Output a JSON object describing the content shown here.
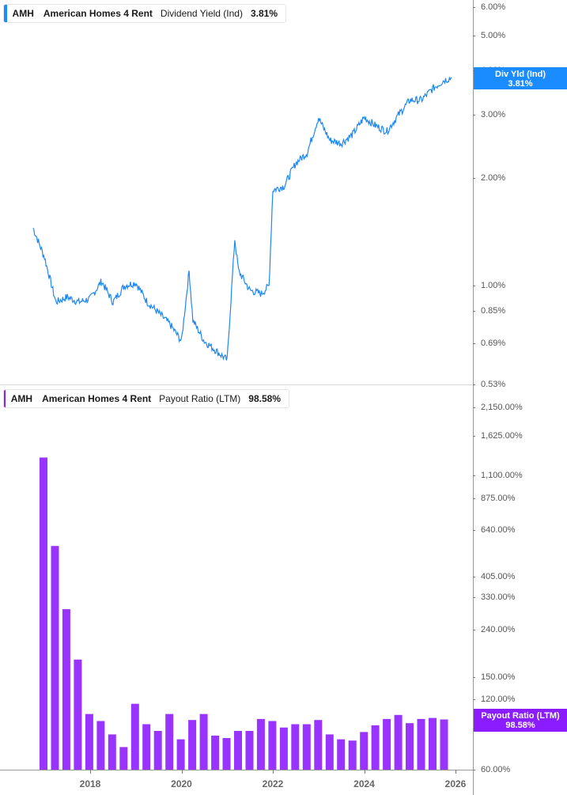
{
  "top_panel": {
    "legend": {
      "ticker": "AMH",
      "company": "American Homes 4 Rent",
      "metric": "Dividend Yield (Ind)",
      "value": "3.81%"
    },
    "flag": {
      "line1": "Div Yld (Ind)",
      "line2": "3.81%",
      "color": "#1a8cff"
    },
    "line_color": "#1e88f0",
    "y_ticks": [
      "6.00%",
      "5.00%",
      "4.00%",
      "3.00%",
      "2.00%",
      "1.00%",
      "0.85%",
      "0.69%",
      "0.53%"
    ]
  },
  "bottom_panel": {
    "legend": {
      "ticker": "AMH",
      "company": "American Homes 4 Rent",
      "metric": "Payout Ratio (LTM)",
      "value": "98.58%"
    },
    "flag": {
      "line1": "Payout Ratio (LTM)",
      "line2": "98.58%",
      "color": "#8a1cff"
    },
    "bar_color": "#9933ff",
    "y_ticks": [
      "2,150.00%",
      "1,625.00%",
      "1,100.00%",
      "875.00%",
      "640.00%",
      "405.00%",
      "330.00%",
      "240.00%",
      "150.00%",
      "120.00%",
      "90.00%",
      "60.00%"
    ]
  },
  "x_axis": {
    "ticks": [
      "2018",
      "2020",
      "2022",
      "2024",
      "2026"
    ]
  },
  "chart_data": [
    {
      "type": "line",
      "title": "AMH American Homes 4 Rent Dividend Yield (Ind)",
      "current_value": "3.81%",
      "yscale": "log",
      "ylim": [
        0.53,
        6.0
      ],
      "y_ticks": [
        6.0,
        5.0,
        4.0,
        3.0,
        2.0,
        1.0,
        0.85,
        0.69,
        0.53
      ],
      "x_ticks": [
        "2018",
        "2020",
        "2022",
        "2024",
        "2026"
      ],
      "x": [
        "2016-10",
        "2017-01",
        "2017-04",
        "2017-07",
        "2017-10",
        "2018-01",
        "2018-04",
        "2018-07",
        "2018-10",
        "2019-01",
        "2019-04",
        "2019-07",
        "2019-10",
        "2020-01",
        "2020-03",
        "2020-04",
        "2020-07",
        "2020-10",
        "2021-01",
        "2021-03",
        "2021-04",
        "2021-07",
        "2021-10",
        "2021-12",
        "2022-01",
        "2022-04",
        "2022-07",
        "2022-10",
        "2023-01",
        "2023-02",
        "2023-04",
        "2023-07",
        "2023-10",
        "2024-01",
        "2024-04",
        "2024-07",
        "2024-10",
        "2025-01",
        "2025-04",
        "2025-07",
        "2025-10",
        "2025-12"
      ],
      "values": [
        1.45,
        1.2,
        0.9,
        0.93,
        0.9,
        0.92,
        1.03,
        0.9,
        1.0,
        1.02,
        0.9,
        0.84,
        0.78,
        0.7,
        1.1,
        0.8,
        0.7,
        0.66,
        0.62,
        1.35,
        1.1,
        0.97,
        0.95,
        1.0,
        1.85,
        1.9,
        2.2,
        2.35,
        2.95,
        2.8,
        2.55,
        2.5,
        2.65,
        2.95,
        2.8,
        2.7,
        3.0,
        3.3,
        3.3,
        3.55,
        3.75,
        3.81
      ]
    },
    {
      "type": "bar",
      "title": "AMH American Homes 4 Rent Payout Ratio (LTM)",
      "current_value": "98.58%",
      "yscale": "log",
      "ylim": [
        60,
        2150
      ],
      "y_ticks": [
        2150,
        1625,
        1100,
        875,
        640,
        405,
        330,
        240,
        150,
        120,
        90,
        60
      ],
      "x_ticks": [
        "2018",
        "2020",
        "2022",
        "2024",
        "2026"
      ],
      "categories": [
        "Q4 2016",
        "Q1 2017",
        "Q2 2017",
        "Q3 2017",
        "Q4 2017",
        "Q1 2018",
        "Q2 2018",
        "Q3 2018",
        "Q4 2018",
        "Q1 2019",
        "Q2 2019",
        "Q3 2019",
        "Q4 2019",
        "Q1 2020",
        "Q2 2020",
        "Q3 2020",
        "Q4 2020",
        "Q1 2021",
        "Q2 2021",
        "Q3 2021",
        "Q4 2021",
        "Q1 2022",
        "Q2 2022",
        "Q3 2022",
        "Q4 2022",
        "Q1 2023",
        "Q2 2023",
        "Q3 2023",
        "Q4 2023",
        "Q1 2024",
        "Q2 2024",
        "Q3 2024",
        "Q4 2024",
        "Q1 2025",
        "Q2 2025",
        "Q3 2025"
      ],
      "values": [
        1310,
        547,
        293,
        178,
        104,
        97,
        85,
        75,
        115,
        94,
        88,
        104,
        81,
        98,
        104,
        84,
        82,
        88,
        88,
        99,
        97,
        91,
        94,
        94,
        98,
        85,
        81,
        80,
        87,
        93,
        99,
        103,
        95,
        99,
        100,
        98.58
      ]
    }
  ]
}
